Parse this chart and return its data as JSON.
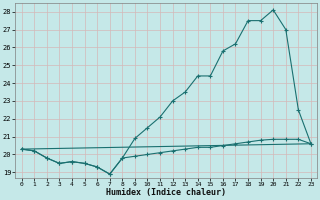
{
  "xlabel": "Humidex (Indice chaleur)",
  "xlim": [
    -0.5,
    23.5
  ],
  "ylim": [
    18.7,
    28.5
  ],
  "yticks": [
    19,
    20,
    21,
    22,
    23,
    24,
    25,
    26,
    27,
    28
  ],
  "xticks": [
    0,
    1,
    2,
    3,
    4,
    5,
    6,
    7,
    8,
    9,
    10,
    11,
    12,
    13,
    14,
    15,
    16,
    17,
    18,
    19,
    20,
    21,
    22,
    23
  ],
  "bg_color": "#c5e8e8",
  "grid_color": "#d4b8b8",
  "line_color": "#1a7070",
  "line1_x": [
    0,
    1,
    2,
    3,
    4,
    5,
    6,
    7,
    8,
    9,
    10,
    11,
    12,
    13,
    14,
    15,
    16,
    17,
    18,
    19,
    20,
    21,
    22,
    23
  ],
  "line1_y": [
    20.3,
    20.2,
    19.8,
    19.5,
    19.6,
    19.5,
    19.3,
    18.9,
    19.8,
    20.9,
    21.5,
    22.1,
    23.0,
    23.5,
    24.4,
    24.4,
    25.8,
    26.2,
    27.5,
    27.5,
    28.1,
    27.0,
    22.5,
    20.6
  ],
  "line2_x": [
    0,
    1,
    2,
    3,
    4,
    5,
    6,
    7,
    8,
    9,
    10,
    11,
    12,
    13,
    14,
    15,
    16,
    17,
    18,
    19,
    20,
    21,
    22,
    23
  ],
  "line2_y": [
    20.3,
    20.2,
    19.8,
    19.5,
    19.6,
    19.5,
    19.3,
    18.9,
    19.8,
    19.9,
    20.0,
    20.1,
    20.2,
    20.3,
    20.4,
    20.4,
    20.5,
    20.6,
    20.7,
    20.8,
    20.85,
    20.85,
    20.85,
    20.6
  ],
  "line3_x": [
    0,
    23
  ],
  "line3_y": [
    20.3,
    20.6
  ]
}
